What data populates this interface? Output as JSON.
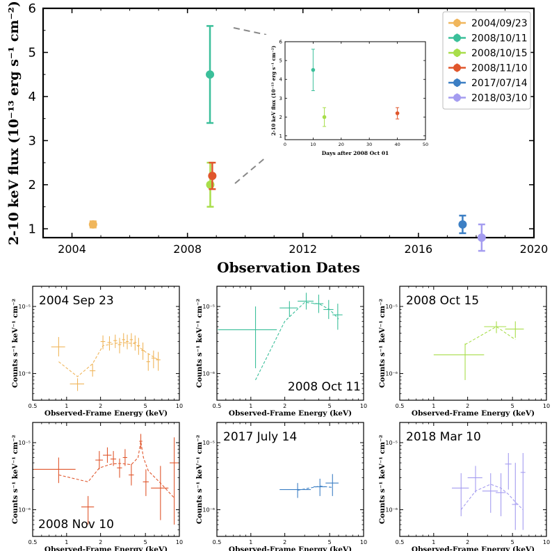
{
  "chart_data": [
    {
      "type": "scatter",
      "title": "",
      "xlabel": "Observation Dates",
      "ylabel": "2-10 keV flux (10⁻¹³ erg s⁻¹ cm⁻²)",
      "xlim": [
        2003,
        2020
      ],
      "ylim": [
        0.8,
        6
      ],
      "xticks": [
        "2004",
        "2008",
        "2012",
        "2016",
        "2020"
      ],
      "yticks": [
        "1",
        "2",
        "3",
        "4",
        "5",
        "6"
      ],
      "legend_position": "top-right",
      "series": [
        {
          "name": "2004/09/23",
          "color": "#f0b65c",
          "x": 2004.73,
          "y": 1.1,
          "err": 0.07
        },
        {
          "name": "2008/10/11",
          "color": "#3bbf9a",
          "x": 2008.78,
          "y": 4.5,
          "err": 1.1
        },
        {
          "name": "2008/10/15",
          "color": "#a8de4a",
          "x": 2008.79,
          "y": 2.0,
          "err": 0.5
        },
        {
          "name": "2008/11/10",
          "color": "#e0562c",
          "x": 2008.86,
          "y": 2.2,
          "err": 0.3
        },
        {
          "name": "2017/07/14",
          "color": "#3c7fc4",
          "x": 2017.53,
          "y": 1.1,
          "err": 0.2
        },
        {
          "name": "2018/03/10",
          "color": "#a49cf0",
          "x": 2018.19,
          "y": 0.8,
          "err": 0.3
        }
      ],
      "inset": {
        "xlabel": "Days after 2008 Oct 01",
        "ylabel": "2-10 keV flux (10⁻¹³ erg s⁻¹ cm⁻²)",
        "xlim": [
          0,
          50
        ],
        "ylim": [
          0.8,
          6
        ],
        "xticks": [
          "0",
          "10",
          "20",
          "30",
          "40",
          "50"
        ],
        "yticks": [
          "1",
          "2",
          "3",
          "4",
          "5",
          "6"
        ],
        "points": [
          {
            "x": 10,
            "y": 4.5,
            "err": 1.1,
            "color": "#3bbf9a"
          },
          {
            "x": 14,
            "y": 2.0,
            "err": 0.5,
            "color": "#a8de4a"
          },
          {
            "x": 40,
            "y": 2.2,
            "err": 0.3,
            "color": "#e0562c"
          }
        ]
      }
    },
    {
      "type": "panels",
      "xlabel": "Observed-Frame Energy (keV)",
      "ylabel": "Counts s⁻¹ keV⁻¹ cm⁻²",
      "xscale": "log",
      "yscale": "log",
      "xlim": [
        0.5,
        10
      ],
      "ylim": [
        4e-07,
        2e-05
      ],
      "xticks": [
        "0.5",
        "1",
        "2",
        "5",
        "10"
      ],
      "yticks": [
        "10⁻⁶",
        "10⁻⁵"
      ],
      "panels": [
        {
          "label": "2004 Sep 23",
          "label_position": "top-left",
          "color": "#f0b65c",
          "points": [
            [
              0.85,
              2.5e-06,
              0.12,
              1.8e-06,
              3.5e-06
            ],
            [
              1.25,
              7e-07,
              0.18,
              5.5e-07,
              8.5e-07
            ],
            [
              1.7,
              1.1e-06,
              0.1,
              9e-07,
              1.4e-06
            ],
            [
              2.1,
              3e-06,
              0.1,
              2.3e-06,
              3.7e-06
            ],
            [
              2.4,
              2.9e-06,
              0.1,
              2.2e-06,
              3.6e-06
            ],
            [
              2.7,
              3.1e-06,
              0.1,
              2.4e-06,
              3.8e-06
            ],
            [
              2.95,
              2.7e-06,
              0.1,
              2e-06,
              3.4e-06
            ],
            [
              3.2,
              3.2e-06,
              0.1,
              2.5e-06,
              4e-06
            ],
            [
              3.45,
              3e-06,
              0.1,
              2.3e-06,
              3.8e-06
            ],
            [
              3.75,
              3.2e-06,
              0.12,
              2.5e-06,
              4e-06
            ],
            [
              4.05,
              2.9e-06,
              0.12,
              2.2e-06,
              3.7e-06
            ],
            [
              4.35,
              2.6e-06,
              0.12,
              1.9e-06,
              3.4e-06
            ],
            [
              4.75,
              2.2e-06,
              0.15,
              1.6e-06,
              2.9e-06
            ],
            [
              5.3,
              1.5e-06,
              0.2,
              1.1e-06,
              2e-06
            ],
            [
              5.9,
              1.7e-06,
              0.25,
              1.2e-06,
              2.2e-06
            ],
            [
              6.5,
              1.6e-06,
              0.3,
              1.1e-06,
              2.1e-06
            ]
          ],
          "model": [
            [
              0.85,
              1.5e-06
            ],
            [
              1.25,
              9e-07
            ],
            [
              1.7,
              1.4e-06
            ],
            [
              2.1,
              2.6e-06
            ],
            [
              3.0,
              2.9e-06
            ],
            [
              4.0,
              2.8e-06
            ],
            [
              5.0,
              2.1e-06
            ],
            [
              6.5,
              1.6e-06
            ]
          ]
        },
        {
          "label": "2008 Oct 11",
          "label_position": "bottom-right",
          "color": "#3bbf9a",
          "points": [
            [
              1.1,
              4.5e-06,
              0.6,
              1.2e-06,
              1e-05
            ],
            [
              2.2,
              9.5e-06,
              0.4,
              7e-06,
              1.2e-05
            ],
            [
              3.1,
              1.2e-05,
              0.5,
              9e-06,
              1.6e-05
            ],
            [
              4.0,
              1.1e-05,
              0.4,
              8e-06,
              1.5e-05
            ],
            [
              4.9,
              9e-06,
              0.5,
              6.5e-06,
              1.25e-05
            ],
            [
              5.9,
              7.5e-06,
              0.6,
              4.5e-06,
              1.1e-05
            ]
          ],
          "model": [
            [
              1.1,
              8e-07
            ],
            [
              2.0,
              6e-06
            ],
            [
              3.0,
              1.15e-05
            ],
            [
              4.0,
              1.1e-05
            ],
            [
              5.0,
              9e-06
            ],
            [
              6.0,
              6.5e-06
            ]
          ]
        },
        {
          "label": "2008 Oct 15",
          "label_position": "top-left",
          "color": "#a8de4a",
          "points": [
            [
              1.9,
              1.9e-06,
              0.9,
              8e-07,
              2.8e-06
            ],
            [
              3.6,
              5e-06,
              0.8,
              4e-06,
              6e-06
            ],
            [
              5.3,
              4.6e-06,
              1.0,
              3.4e-06,
              6e-06
            ]
          ],
          "model": [
            [
              1.9,
              2.7e-06
            ],
            [
              3.6,
              5e-06
            ],
            [
              5.3,
              3.2e-06
            ]
          ]
        },
        {
          "label": "2008 Nov 10",
          "label_position": "bottom-left",
          "color": "#e0562c",
          "points": [
            [
              0.85,
              4e-06,
              0.35,
              2.5e-06,
              6e-06
            ],
            [
              1.55,
              1.1e-06,
              0.2,
              6e-07,
              1.6e-06
            ],
            [
              1.95,
              5.5e-06,
              0.15,
              4e-06,
              7.5e-06
            ],
            [
              2.3,
              6.5e-06,
              0.2,
              5e-06,
              8.5e-06
            ],
            [
              2.6,
              5.7e-06,
              0.15,
              4.5e-06,
              7.5e-06
            ],
            [
              2.95,
              4.2e-06,
              0.15,
              3e-06,
              5.8e-06
            ],
            [
              3.3,
              6e-06,
              0.15,
              4.5e-06,
              8e-06
            ],
            [
              3.75,
              3.3e-06,
              0.2,
              2.3e-06,
              4.8e-06
            ],
            [
              4.55,
              1.05e-05,
              0.15,
              8e-06,
              1.35e-05
            ],
            [
              5.05,
              2.6e-06,
              0.3,
              1.6e-06,
              4e-06
            ],
            [
              6.8,
              2.1e-06,
              1.2,
              7e-07,
              4.5e-06
            ],
            [
              9.0,
              5e-06,
              0.8,
              6e-07,
              1.2e-05
            ]
          ],
          "model": [
            [
              0.85,
              3.3e-06
            ],
            [
              1.55,
              2.6e-06
            ],
            [
              1.95,
              4.2e-06
            ],
            [
              2.5,
              4.8e-06
            ],
            [
              3.0,
              4.9e-06
            ],
            [
              3.75,
              4.7e-06
            ],
            [
              4.3,
              6e-06
            ],
            [
              4.55,
              1.05e-05
            ],
            [
              4.8,
              6e-06
            ],
            [
              5.3,
              3.8e-06
            ],
            [
              6.8,
              2.5e-06
            ],
            [
              9.0,
              1.5e-06
            ]
          ]
        },
        {
          "label": "2017 July 14",
          "label_position": "top-left",
          "color": "#3c7fc4",
          "points": [
            [
              2.6,
              2e-06,
              0.8,
              1.5e-06,
              2.5e-06
            ],
            [
              4.1,
              2.2e-06,
              0.5,
              1.6e-06,
              2.9e-06
            ],
            [
              5.3,
              2.5e-06,
              0.7,
              1.6e-06,
              3.4e-06
            ]
          ],
          "model": [
            [
              2.6,
              1.95e-06
            ],
            [
              4.1,
              2.25e-06
            ],
            [
              5.3,
              2.15e-06
            ]
          ]
        },
        {
          "label": "2018 Mar 10",
          "label_position": "top-left",
          "color": "#a49cf0",
          "points": [
            [
              1.75,
              2.1e-06,
              0.3,
              8e-07,
              3.5e-06
            ],
            [
              2.35,
              3e-06,
              0.35,
              1.8e-06,
              4.5e-06
            ],
            [
              3.2,
              1.9e-06,
              0.5,
              9e-07,
              3.5e-06
            ],
            [
              3.95,
              1.8e-06,
              0.4,
              8e-07,
              3.5e-06
            ],
            [
              4.6,
              4.8e-06,
              0.3,
              2e-06,
              7e-06
            ],
            [
              5.3,
              1.2e-06,
              0.35,
              5e-07,
              5e-06
            ],
            [
              6.2,
              3.6e-06,
              0.3,
              5e-07,
              7e-06
            ]
          ],
          "model": [
            [
              1.75,
              1e-06
            ],
            [
              2.35,
              1.9e-06
            ],
            [
              3.2,
              2.4e-06
            ],
            [
              3.95,
              2.1e-06
            ],
            [
              4.6,
              1.7e-06
            ],
            [
              5.3,
              1.3e-06
            ],
            [
              6.2,
              1e-06
            ]
          ]
        }
      ]
    }
  ]
}
